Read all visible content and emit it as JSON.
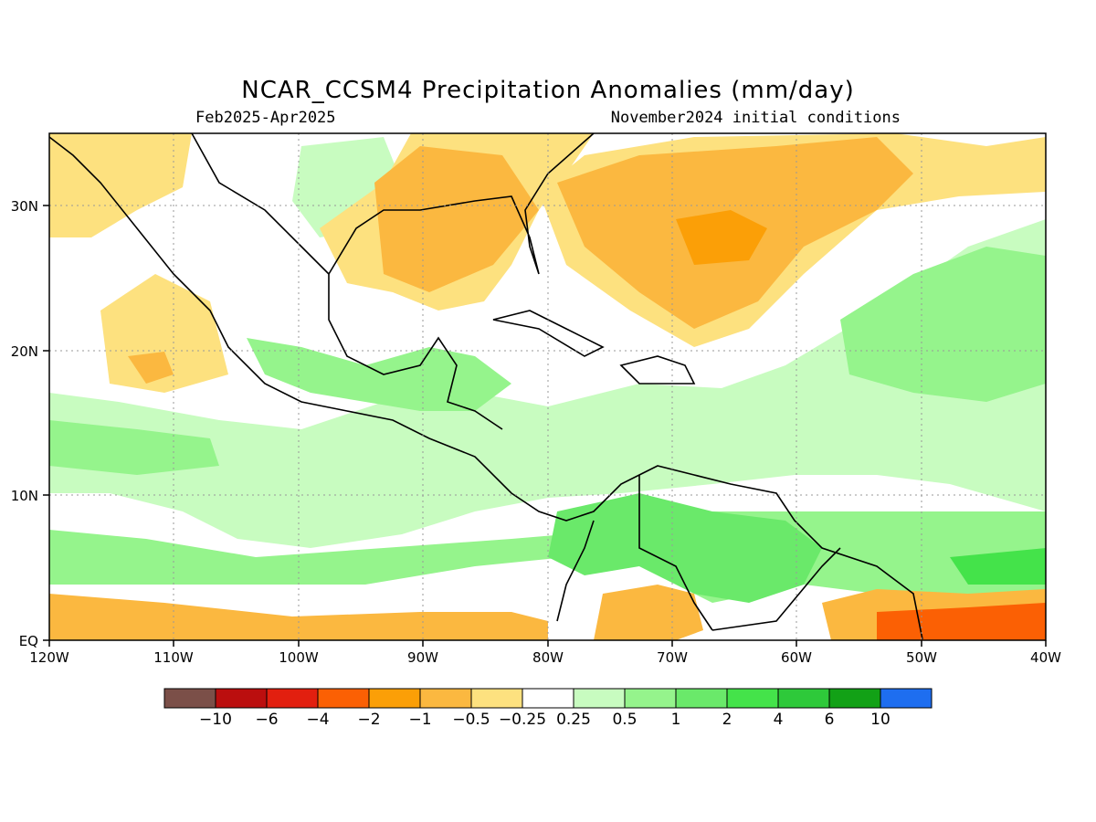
{
  "title": "NCAR_CCSM4 Precipitation Anomalies (mm/day)",
  "subtitle_left": "Feb2025-Apr2025",
  "subtitle_right": "November2024 initial conditions",
  "axes": {
    "x_ticks": [
      "120W",
      "110W",
      "100W",
      "90W",
      "80W",
      "70W",
      "60W",
      "50W",
      "40W"
    ],
    "y_ticks": [
      "EQ",
      "10N",
      "20N",
      "30N"
    ],
    "lon_range": [
      -120,
      -40
    ],
    "lat_range": [
      0,
      35
    ],
    "grid": true
  },
  "colorbar": {
    "colors": [
      "#7b4f48",
      "#bb0e0e",
      "#e21f0f",
      "#fb6004",
      "#fb9f07",
      "#fbb840",
      "#fde17f",
      "#ffffff",
      "#c8fcc0",
      "#95f48c",
      "#6ae96a",
      "#44e34a",
      "#2ec93a",
      "#12a116",
      "#1e6ef0"
    ],
    "labels": [
      "−10",
      "−6",
      "−4",
      "−2",
      "−1",
      "−0.5",
      "−0.25",
      "0.25",
      "0.5",
      "1",
      "2",
      "4",
      "6",
      "10"
    ]
  }
}
